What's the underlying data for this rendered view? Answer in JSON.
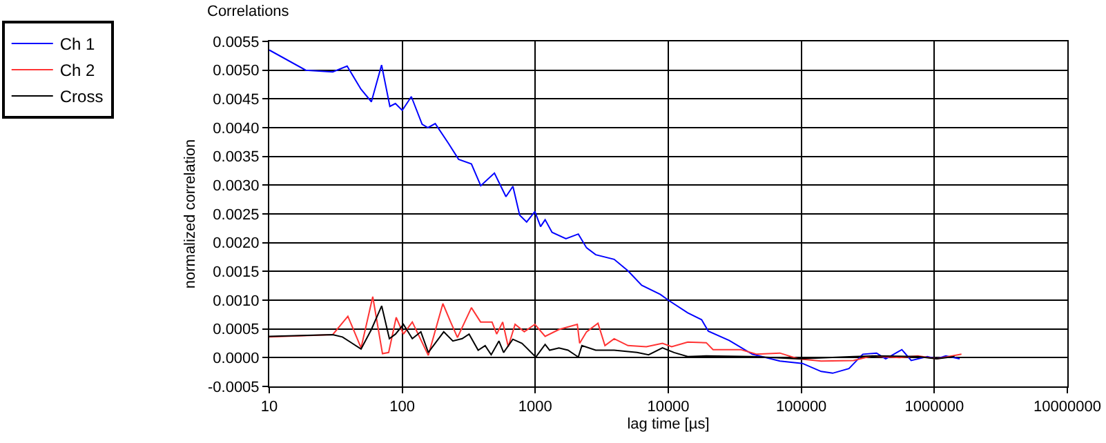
{
  "chart_data": {
    "type": "line",
    "title": "Correlations",
    "xlabel": "lag time [µs]",
    "ylabel": "normalized correlation",
    "log": "x",
    "grid": true,
    "legend": "top left",
    "marker": "none",
    "line_style": "solid",
    "xlim": [
      10,
      10000000
    ],
    "xticks": [
      10,
      100,
      1000,
      10000,
      100000,
      1000000,
      10000000
    ],
    "ylim": [
      -0.0005,
      0.0055
    ],
    "yticks": [
      {
        "value": -0.0005,
        "label": "-0.0005"
      },
      {
        "value": 0,
        "label": "0.0000"
      },
      {
        "value": 0.0005,
        "label": "0.0005"
      },
      {
        "value": 0.001,
        "label": "0.0010"
      },
      {
        "value": 0.0015,
        "label": "0.0015"
      },
      {
        "value": 0.002,
        "label": "0.0020"
      },
      {
        "value": 0.0025,
        "label": "0.0025"
      },
      {
        "value": 0.003,
        "label": "0.0030"
      },
      {
        "value": 0.0035,
        "label": "0.0035"
      },
      {
        "value": 0.004,
        "label": "0.0040"
      },
      {
        "value": 0.0045,
        "label": "0.0045"
      },
      {
        "value": 0.005,
        "label": "0.0050"
      },
      {
        "value": 0.0055,
        "label": "0.0055"
      }
    ],
    "series": [
      {
        "name": "Ch 1",
        "color": "#0000ff",
        "x": [
          10,
          18.8,
          30,
          38.5,
          48.9,
          58.6,
          69.9,
          80.7,
          88.8,
          100,
          117,
          141,
          156,
          177,
          222,
          265,
          331,
          389,
          493,
          602,
          679,
          763,
          861,
          993,
          1096,
          1186,
          1337,
          1700,
          2106,
          2430,
          2846,
          3917,
          4977,
          6310,
          8710,
          10000,
          14000,
          17800,
          20000,
          28700,
          42800,
          69000,
          102000,
          141000,
          172000,
          228000,
          290000,
          368000,
          431000,
          570000,
          670000,
          885000,
          1040000,
          1220000,
          1550000
        ],
        "values": [
          0.00535,
          0.005,
          0.00497,
          0.00507,
          0.00467,
          0.00445,
          0.00509,
          0.00437,
          0.00442,
          0.0043,
          0.00454,
          0.00406,
          0.004,
          0.00407,
          0.00373,
          0.00345,
          0.00337,
          0.00299,
          0.00321,
          0.0028,
          0.00298,
          0.00248,
          0.00236,
          0.00254,
          0.00228,
          0.0024,
          0.00218,
          0.00207,
          0.00215,
          0.00191,
          0.00179,
          0.00171,
          0.00151,
          0.00126,
          0.0011,
          0.001,
          0.00078,
          0.00066,
          0.00046,
          0.0003,
          6e-05,
          -6e-05,
          -0.0001,
          -0.00024,
          -0.00027,
          -0.00019,
          6e-05,
          8e-05,
          -2e-05,
          0.00014,
          -5e-05,
          2e-05,
          -2e-05,
          3e-05,
          -2e-05
        ]
      },
      {
        "name": "Ch 2",
        "color": "#ff3333",
        "x": [
          10,
          30,
          39,
          49,
          60,
          71,
          79,
          90,
          102,
          119,
          157,
          202,
          231,
          260,
          331,
          388,
          473,
          513,
          569,
          626,
          705,
          827,
          993,
          1186,
          1506,
          2070,
          2155,
          2430,
          2960,
          3340,
          3917,
          4977,
          6840,
          9040,
          10600,
          14000,
          19300,
          21700,
          28700,
          35000,
          46300,
          69000,
          94800,
          141000,
          247000,
          340000,
          547000,
          753000,
          1040000,
          1600000
        ],
        "values": [
          0.00036,
          0.0004,
          0.00072,
          0.00017,
          0.00106,
          7e-05,
          9e-05,
          0.0007,
          0.00041,
          0.00062,
          4e-05,
          0.00094,
          0.00062,
          0.00035,
          0.00087,
          0.00062,
          0.00062,
          0.00041,
          0.00062,
          0.00019,
          0.00058,
          0.00045,
          0.00058,
          0.00037,
          0.00049,
          0.00058,
          0.00025,
          0.00045,
          0.0006,
          0.00021,
          0.00033,
          0.00021,
          0.00019,
          0.00025,
          0.00019,
          0.00027,
          0.00026,
          0.00014,
          0.00014,
          0.00014,
          6e-05,
          8e-05,
          -2e-05,
          -6e-05,
          -5e-05,
          3e-05,
          0,
          3e-05,
          -2e-05,
          6e-05
        ]
      },
      {
        "name": "Cross",
        "color": "#000000",
        "x": [
          10,
          30,
          35.5,
          49,
          58.6,
          70,
          80,
          89,
          102,
          119,
          138,
          157,
          205,
          240,
          282,
          318,
          372,
          420,
          466,
          533,
          578,
          678,
          794,
          1009,
          1186,
          1282,
          1506,
          1762,
          2106,
          2240,
          2846,
          3917,
          5820,
          7110,
          9040,
          11040,
          14000,
          19300,
          42800,
          94800,
          247000,
          363000,
          753000,
          1040000,
          1420000
        ],
        "values": [
          0.00037,
          0.0004,
          0.00036,
          0.00015,
          0.00049,
          0.0009,
          0.00033,
          0.00041,
          0.00058,
          0.00033,
          0.00045,
          9e-05,
          0.00045,
          0.00029,
          0.00033,
          0.00041,
          0.00013,
          0.00021,
          5e-05,
          0.00029,
          9e-05,
          0.00032,
          0.00025,
          1e-05,
          0.00023,
          0.00013,
          0.00017,
          0.00013,
          1e-05,
          0.00021,
          0.00013,
          0.00013,
          9e-05,
          5e-05,
          0.00017,
          9e-05,
          2e-05,
          3e-05,
          2e-05,
          -2e-05,
          2e-05,
          3e-05,
          2e-05,
          -2e-05,
          2e-05
        ]
      }
    ]
  }
}
